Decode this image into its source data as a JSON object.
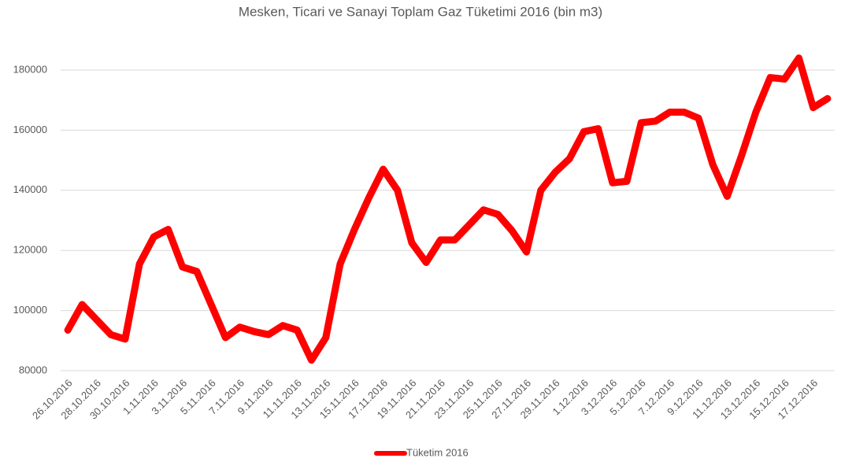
{
  "chart_data": {
    "type": "line",
    "title": "Mesken, Ticari ve Sanayi Toplam Gaz Tüketimi 2016 (bin m3)",
    "categories": [
      "26.10.2016",
      null,
      "28.10.2016",
      null,
      "30.10.2016",
      null,
      "1.11.2016",
      null,
      "3.11.2016",
      null,
      "5.11.2016",
      null,
      "7.11.2016",
      null,
      "9.11.2016",
      null,
      "11.11.2016",
      null,
      "13.11.2016",
      null,
      "15.11.2016",
      null,
      "17.11.2016",
      null,
      "19.11.2016",
      null,
      "21.11.2016",
      null,
      "23.11.2016",
      null,
      "25.11.2016",
      null,
      "27.11.2016",
      null,
      "29.11.2016",
      null,
      "1.12.2016",
      null,
      "3.12.2016",
      null,
      "5.12.2016",
      null,
      "7.12.2016",
      null,
      "9.12.2016",
      null,
      "11.12.2016",
      null,
      "13.12.2016",
      null,
      "15.12.2016",
      null,
      "17.12.2016",
      null
    ],
    "series": [
      {
        "name": "Tüketim 2016",
        "color": "#ff0000",
        "values": [
          93500,
          102000,
          97000,
          92000,
          90500,
          115500,
          124500,
          127000,
          114500,
          113000,
          102000,
          91000,
          94500,
          93000,
          92000,
          95000,
          93500,
          83500,
          91000,
          115500,
          127000,
          137500,
          147000,
          140000,
          122500,
          116000,
          123500,
          123500,
          128500,
          133500,
          132000,
          126500,
          119500,
          140000,
          146000,
          150500,
          159500,
          160500,
          142500,
          143000,
          162500,
          163000,
          166000,
          166000,
          164000,
          148500,
          138000,
          151500,
          166000,
          177500,
          177000,
          184000,
          167500,
          170500
        ]
      }
    ],
    "ylim": [
      80000,
      180000
    ],
    "yticks": [
      80000,
      100000,
      120000,
      140000,
      160000,
      180000
    ],
    "grid": true,
    "legend": "bottom"
  }
}
